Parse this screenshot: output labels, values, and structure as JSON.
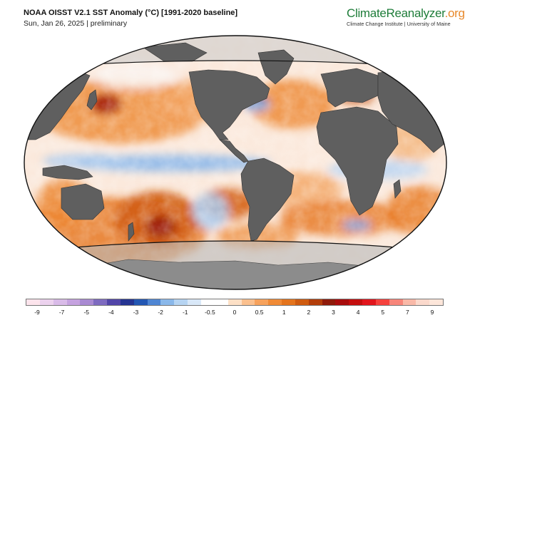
{
  "header": {
    "title": "NOAA OISST V2.1 SST Anomaly (°C) [1991-2020 baseline]",
    "subtitle": "Sun, Jan 26, 2025 | preliminary"
  },
  "brand": {
    "name_part1": "ClimateReanalyzer",
    "name_part2": ".org",
    "tagline": "Climate Change Institute | University of Maine"
  },
  "colors": {
    "land": "#5f5f5f",
    "polar_land": "#8c8c8c",
    "ocean_base": "#fbe9dc",
    "warm_anomaly": "#e4761f",
    "strong_warm": "#a81d12",
    "cool_anomaly": "#8fb9ea"
  },
  "colorbar": {
    "unit": "°C",
    "swatches": [
      "#fde4ec",
      "#ecd2ee",
      "#d9bbe8",
      "#c5a2df",
      "#a98ad2",
      "#7e6bc0",
      "#5145a8",
      "#253492",
      "#2357b3",
      "#4f86d3",
      "#8ab8ea",
      "#b6d4f2",
      "#d9e8f8",
      "#ffffff",
      "#ffffff",
      "#fde0c6",
      "#fbc08e",
      "#f7a25c",
      "#f08a36",
      "#e4741d",
      "#cf5b10",
      "#b23d0a",
      "#8f1a0a",
      "#a80c0c",
      "#c40e0e",
      "#e1151c",
      "#f5413d",
      "#f7857a",
      "#f9b9a8",
      "#fbd9cc",
      "#fde6da"
    ],
    "ticks": [
      "-9",
      "-7",
      "-5",
      "-4",
      "-3",
      "-2",
      "-1",
      "-0.5",
      "0",
      "0.5",
      "1",
      "2",
      "3",
      "4",
      "5",
      "7",
      "9"
    ]
  }
}
